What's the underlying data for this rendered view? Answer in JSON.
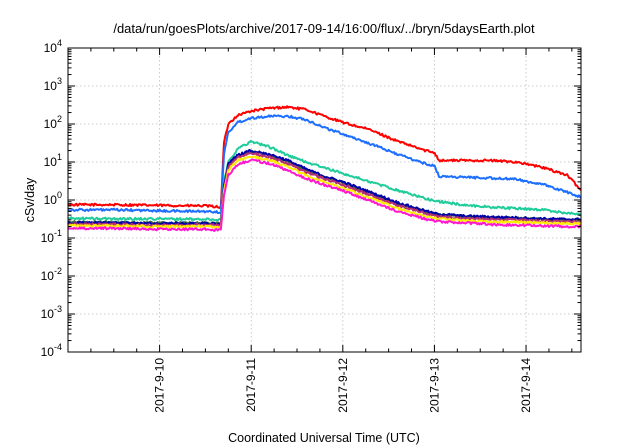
{
  "chart_data": {
    "type": "line",
    "title": "/data/run/goesPlots/archive/2017-09-14/16:00/flux/../bryn/5daysEarth.plot",
    "xlabel": "Coordinated Universal Time (UTC)",
    "ylabel": "cSv/day",
    "yscale": "log",
    "ylim_exponents": [
      -4,
      4
    ],
    "yticks": [
      {
        "base": "10",
        "exp": "-4"
      },
      {
        "base": "10",
        "exp": "-3"
      },
      {
        "base": "10",
        "exp": "-2"
      },
      {
        "base": "10",
        "exp": "-1"
      },
      {
        "base": "10",
        "exp": "0"
      },
      {
        "base": "10",
        "exp": "1"
      },
      {
        "base": "10",
        "exp": "2"
      },
      {
        "base": "10",
        "exp": "3"
      },
      {
        "base": "10",
        "exp": "4"
      }
    ],
    "xlim_days": [
      0,
      5.6
    ],
    "x_ticks": [
      {
        "day": 1.0,
        "label": "2017-9-10"
      },
      {
        "day": 2.0,
        "label": "2017-9-11"
      },
      {
        "day": 3.0,
        "label": "2017-9-12"
      },
      {
        "day": 4.0,
        "label": "2017-9-13"
      },
      {
        "day": 5.0,
        "label": "2017-9-14"
      }
    ],
    "x_unit": "days since 2017-09-09 00:00 UTC",
    "grid": true,
    "series": [
      {
        "color": "#ff0000",
        "x": [
          0,
          0.5,
          1.0,
          1.5,
          1.67,
          1.7,
          1.75,
          1.85,
          2.0,
          2.2,
          2.4,
          2.6,
          2.8,
          3.0,
          3.3,
          3.6,
          3.9,
          4.0,
          4.05,
          4.3,
          4.6,
          4.9,
          5.2,
          5.45,
          5.6
        ],
        "y": [
          0.75,
          0.75,
          0.72,
          0.7,
          0.65,
          30,
          100,
          170,
          220,
          260,
          280,
          240,
          160,
          110,
          70,
          35,
          20,
          18,
          11,
          11,
          11,
          10,
          7,
          4.5,
          1.8
        ]
      },
      {
        "color": "#1e6fff",
        "x": [
          0,
          0.5,
          1.0,
          1.5,
          1.67,
          1.7,
          1.75,
          1.85,
          2.0,
          2.2,
          2.4,
          2.6,
          2.8,
          3.0,
          3.3,
          3.6,
          3.9,
          4.0,
          4.05,
          4.3,
          4.6,
          4.9,
          5.2,
          5.45,
          5.6
        ],
        "y": [
          0.55,
          0.55,
          0.52,
          0.5,
          0.48,
          15,
          60,
          110,
          145,
          160,
          160,
          130,
          80,
          55,
          30,
          16,
          9,
          8,
          4.2,
          4,
          3.8,
          3.5,
          2.5,
          1.6,
          1.2
        ]
      },
      {
        "color": "#1fcc9a",
        "x": [
          0,
          0.5,
          1.0,
          1.5,
          1.67,
          1.7,
          1.75,
          1.85,
          2.0,
          2.2,
          2.4,
          2.6,
          2.8,
          3.0,
          3.3,
          3.6,
          3.9,
          4.0,
          4.3,
          4.6,
          4.9,
          5.2,
          5.45,
          5.6
        ],
        "y": [
          0.33,
          0.32,
          0.32,
          0.31,
          0.3,
          3,
          10,
          22,
          35,
          25,
          15,
          10,
          7,
          5,
          3,
          1.8,
          1.1,
          0.95,
          0.75,
          0.65,
          0.6,
          0.55,
          0.45,
          0.42
        ]
      },
      {
        "color": "#3a6d3a",
        "x": [
          0,
          0.5,
          1.0,
          1.5,
          1.67,
          1.7,
          1.75,
          1.85,
          2.0,
          2.2,
          2.4,
          2.6,
          2.8,
          3.0,
          3.3,
          3.6,
          3.9,
          4.0,
          4.3,
          4.6,
          4.9,
          5.2,
          5.45,
          5.6
        ],
        "y": [
          0.26,
          0.26,
          0.25,
          0.25,
          0.24,
          2,
          8,
          14,
          19,
          15,
          10,
          6,
          4,
          2.8,
          1.5,
          0.8,
          0.5,
          0.42,
          0.37,
          0.35,
          0.33,
          0.31,
          0.3,
          0.3
        ]
      },
      {
        "color": "#0000aa",
        "x": [
          0,
          0.5,
          1.0,
          1.5,
          1.67,
          1.7,
          1.75,
          1.85,
          2.0,
          2.2,
          2.4,
          2.6,
          2.8,
          3.0,
          3.3,
          3.6,
          3.9,
          4.0,
          4.3,
          4.6,
          4.9,
          5.2,
          5.45,
          5.6
        ],
        "y": [
          0.25,
          0.25,
          0.24,
          0.24,
          0.23,
          2.2,
          9,
          15,
          20,
          16,
          11,
          6.5,
          4.2,
          3,
          1.6,
          0.85,
          0.52,
          0.44,
          0.38,
          0.36,
          0.34,
          0.32,
          0.31,
          0.31
        ]
      },
      {
        "color": "#b52f74",
        "x": [
          0,
          0.5,
          1.0,
          1.5,
          1.67,
          1.7,
          1.75,
          1.85,
          2.0,
          2.2,
          2.4,
          2.6,
          2.8,
          3.0,
          3.3,
          3.6,
          3.9,
          4.0,
          4.3,
          4.6,
          4.9,
          5.2,
          5.45,
          5.6
        ],
        "y": [
          0.23,
          0.23,
          0.22,
          0.22,
          0.21,
          1.8,
          7.5,
          13,
          17,
          13.5,
          9,
          5.5,
          3.6,
          2.5,
          1.35,
          0.72,
          0.45,
          0.38,
          0.33,
          0.31,
          0.3,
          0.28,
          0.27,
          0.27
        ]
      },
      {
        "color": "#ffea00",
        "x": [
          0,
          0.5,
          1.0,
          1.5,
          1.67,
          1.7,
          1.75,
          1.85,
          2.0,
          2.2,
          2.4,
          2.6,
          2.8,
          3.0,
          3.3,
          3.6,
          3.9,
          4.0,
          4.3,
          4.6,
          4.9,
          5.2,
          5.45,
          5.6
        ],
        "y": [
          0.21,
          0.21,
          0.2,
          0.2,
          0.19,
          1.5,
          6,
          11,
          14,
          11,
          7.5,
          4.5,
          3,
          2.1,
          1.1,
          0.6,
          0.38,
          0.33,
          0.29,
          0.27,
          0.26,
          0.25,
          0.24,
          0.24
        ]
      },
      {
        "color": "#ff18d0",
        "x": [
          0,
          0.5,
          1.0,
          1.5,
          1.67,
          1.7,
          1.75,
          1.85,
          2.0,
          2.2,
          2.4,
          2.6,
          2.8,
          3.0,
          3.3,
          3.6,
          3.9,
          4.0,
          4.3,
          4.6,
          4.9,
          5.2,
          5.45,
          5.6
        ],
        "y": [
          0.18,
          0.18,
          0.17,
          0.17,
          0.16,
          1.2,
          4.5,
          8.5,
          11.5,
          9,
          6,
          3.7,
          2.5,
          1.75,
          0.95,
          0.5,
          0.32,
          0.28,
          0.25,
          0.23,
          0.22,
          0.21,
          0.2,
          0.2
        ]
      }
    ]
  }
}
